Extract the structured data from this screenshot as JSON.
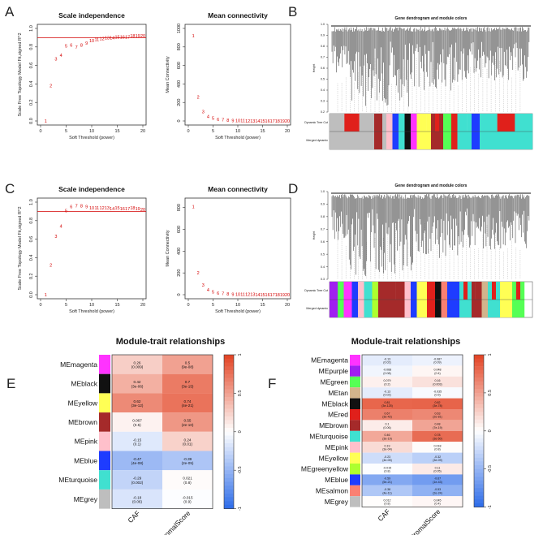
{
  "panel_labels": [
    "A",
    "B",
    "C",
    "D",
    "E",
    "F"
  ],
  "chart_data": [
    {
      "id": "A_scale",
      "type": "scatter",
      "title": "Scale independence",
      "xlabel": "Soft Threshold (power)",
      "ylabel": "Scale Free Topology Model Fit,signed R^2",
      "xlim": [
        0,
        20
      ],
      "ylim": [
        0,
        1.0
      ],
      "xticks": [
        "0",
        "5",
        "10",
        "15",
        "20"
      ],
      "yticks": [
        "0.0",
        "0.2",
        "0.4",
        "0.6",
        "0.8",
        "1.0"
      ],
      "hline": 0.9,
      "x": [
        1,
        2,
        3,
        4,
        5,
        6,
        7,
        8,
        9,
        10,
        11,
        12,
        13,
        14,
        15,
        16,
        17,
        18,
        19,
        20
      ],
      "y": [
        0.0,
        0.38,
        0.67,
        0.71,
        0.81,
        0.82,
        0.8,
        0.82,
        0.84,
        0.87,
        0.88,
        0.89,
        0.9,
        0.9,
        0.91,
        0.91,
        0.91,
        0.92,
        0.92,
        0.92
      ],
      "labels": [
        "1",
        "2",
        "3",
        "4",
        "5",
        "6",
        "7",
        "8",
        "9",
        "10",
        "11",
        "12",
        "13",
        "14",
        "15",
        "16",
        "17",
        "18",
        "19",
        "20"
      ]
    },
    {
      "id": "A_mean",
      "type": "scatter",
      "title": "Mean connectivity",
      "xlabel": "Soft Threshold (power)",
      "ylabel": "Mean Connectivity",
      "xlim": [
        0,
        20
      ],
      "ylim": [
        0,
        1000
      ],
      "xticks": [
        "0",
        "5",
        "10",
        "15",
        "20"
      ],
      "yticks": [
        "0",
        "200",
        "400",
        "600",
        "800",
        "1000"
      ],
      "x": [
        1,
        2,
        3,
        4,
        5,
        6,
        7,
        8,
        9,
        10,
        11,
        12,
        13,
        14,
        15,
        16,
        17,
        18,
        19,
        20
      ],
      "y": [
        920,
        260,
        100,
        50,
        30,
        18,
        12,
        8,
        5,
        4,
        3,
        2,
        2,
        1,
        1,
        1,
        1,
        1,
        1,
        1
      ],
      "labels": [
        "1",
        "2",
        "3",
        "4",
        "5",
        "6",
        "7",
        "8",
        "9",
        "10",
        "11",
        "12",
        "13",
        "14",
        "15",
        "16",
        "17",
        "18",
        "19",
        "20"
      ]
    },
    {
      "id": "C_scale",
      "type": "scatter",
      "title": "Scale independence",
      "xlabel": "Soft Threshold (power)",
      "ylabel": "Scale Free Topology Model Fit,signed R^2",
      "xlim": [
        0,
        20
      ],
      "ylim": [
        0,
        1.0
      ],
      "xticks": [
        "0",
        "5",
        "10",
        "15",
        "20"
      ],
      "yticks": [
        "0.0",
        "0.2",
        "0.4",
        "0.6",
        "0.8",
        "1.0"
      ],
      "hline": 0.9,
      "x": [
        1,
        2,
        3,
        4,
        5,
        6,
        7,
        8,
        9,
        10,
        11,
        12,
        13,
        14,
        15,
        16,
        17,
        18,
        19,
        20
      ],
      "y": [
        0.0,
        0.32,
        0.63,
        0.74,
        0.91,
        0.95,
        0.96,
        0.96,
        0.95,
        0.94,
        0.94,
        0.94,
        0.94,
        0.93,
        0.94,
        0.93,
        0.93,
        0.94,
        0.93,
        0.92
      ],
      "labels": [
        "1",
        "2",
        "3",
        "4",
        "5",
        "6",
        "7",
        "8",
        "9",
        "10",
        "11",
        "12",
        "13",
        "14",
        "15",
        "16",
        "17",
        "18",
        "19",
        "20"
      ]
    },
    {
      "id": "C_mean",
      "type": "scatter",
      "title": "Mean connectivity",
      "xlabel": "Soft Threshold (power)",
      "ylabel": "Mean Connectivity",
      "xlim": [
        0,
        20
      ],
      "ylim": [
        0,
        850
      ],
      "xticks": [
        "0",
        "5",
        "10",
        "15",
        "20"
      ],
      "yticks": [
        "0",
        "200",
        "400",
        "600",
        "800"
      ],
      "x": [
        1,
        2,
        3,
        4,
        5,
        6,
        7,
        8,
        9,
        10,
        11,
        12,
        13,
        14,
        15,
        16,
        17,
        18,
        19,
        20
      ],
      "y": [
        810,
        200,
        90,
        45,
        25,
        15,
        10,
        7,
        5,
        4,
        3,
        2,
        2,
        1,
        1,
        1,
        1,
        1,
        1,
        1
      ],
      "labels": [
        "1",
        "2",
        "3",
        "4",
        "5",
        "6",
        "7",
        "8",
        "9",
        "10",
        "11",
        "12",
        "13",
        "14",
        "15",
        "16",
        "17",
        "18",
        "19",
        "20"
      ]
    },
    {
      "id": "E_heatmap",
      "type": "heatmap",
      "title": "Module-trait relationships",
      "rows": [
        "MEmagenta",
        "MEblack",
        "MEyellow",
        "MEbrown",
        "MEpink",
        "MEblue",
        "MEturquoise",
        "MEgrey"
      ],
      "row_colors": [
        "#ff33ff",
        "#111111",
        "#ffff55",
        "#a52a2a",
        "#ffc0cb",
        "#1e3cff",
        "#40e0d0",
        "#bebebe"
      ],
      "columns": [
        "CAF",
        "StromalScore"
      ],
      "values": [
        [
          0.26,
          0.5
        ],
        [
          0.42,
          0.7
        ],
        [
          0.62,
          0.74
        ],
        [
          0.067,
          0.55
        ],
        [
          -0.15,
          0.24
        ],
        [
          -0.47,
          -0.39
        ],
        [
          -0.29,
          0.021
        ],
        [
          -0.18,
          -0.015
        ]
      ],
      "pvalues": [
        [
          "(0.009)",
          "(9e-08)"
        ],
        [
          "(3e-06)",
          "(3e-15)"
        ],
        [
          "(3e-12)",
          "(4e-21)"
        ],
        [
          "(0.5)",
          "(2e-10)"
        ],
        [
          "(0.1)",
          "(0.01)"
        ],
        [
          "(4e-08)",
          "(2e-05)"
        ],
        [
          "(0.002)",
          "(0.8)"
        ],
        [
          "(0.06)",
          "(0.9)"
        ]
      ],
      "colorbar_ticks": [
        "1",
        "0.5",
        "0",
        "-0.5",
        "-1"
      ]
    },
    {
      "id": "F_heatmap",
      "type": "heatmap",
      "title": "Module-trait relationships",
      "rows": [
        "MEmagenta",
        "MEpurple",
        "MEgreen",
        "MEtan",
        "MEblack",
        "MEred",
        "MEbrown",
        "MEturquoise",
        "MEpink",
        "MEyellow",
        "MEgreenyellow",
        "MEblue",
        "MEsalmon",
        "MEgrey"
      ],
      "row_colors": [
        "#ff33ff",
        "#a020f0",
        "#55ff55",
        "#d2b48c",
        "#111111",
        "#e0201b",
        "#a52a2a",
        "#40e0d0",
        "#ffc0cb",
        "#ffff55",
        "#adff2f",
        "#1e3cff",
        "#fa8072",
        "#bebebe"
      ],
      "columns": [
        "CAF",
        "StromalScore"
      ],
      "values": [
        [
          -0.13,
          -0.087
        ],
        [
          -0.068,
          0.048
        ],
        [
          0.079,
          0.16
        ],
        [
          -0.13,
          -0.035
        ],
        [
          0.81,
          0.82
        ],
        [
          0.67,
          0.63
        ],
        [
          0.1,
          0.48
        ],
        [
          0.46,
          0.78
        ],
        [
          0.19,
          0.018
        ],
        [
          -0.23,
          -0.32
        ],
        [
          -0.015,
          0.11
        ],
        [
          -0.59,
          -0.67
        ],
        [
          -0.38,
          -0.53
        ],
        [
          0.012,
          0.045
        ]
      ],
      "pvalues": [
        [
          "(0.02)",
          "(0.09)"
        ],
        [
          "(0.08)",
          "(0.4)"
        ],
        [
          "(0.2)",
          "(0.003)"
        ],
        [
          "(0.02)",
          "(0.5)"
        ],
        [
          "(3e-125)",
          "(3e-78)"
        ],
        [
          "(3e-42)",
          "(2e-81)"
        ],
        [
          "(0.06)",
          "(7e-19)"
        ],
        [
          "(3e-19)",
          "(3e-50)"
        ],
        [
          "(3e-04)",
          "(0.8)"
        ],
        [
          "(4e-05)",
          "(3e-09)"
        ],
        [
          "(0.8)",
          "(0.05)"
        ],
        [
          "(5e-21)",
          "(1e-43)"
        ],
        [
          "(4e-11)",
          "(2e-24)"
        ],
        [
          "(0.8)",
          "(0.4)"
        ]
      ],
      "colorbar_ticks": [
        "1",
        "0.5",
        "0",
        "-0.5",
        "-1"
      ]
    }
  ],
  "dendrograms": [
    {
      "id": "B",
      "title": "Gene dendrogram and module colors",
      "ylabel": "Height",
      "yticks": [
        "1.0",
        "0.9",
        "0.8",
        "0.7",
        "0.6",
        "0.5",
        "0.4",
        "0.3",
        "0.2"
      ],
      "band_labels": [
        "Dynamic Tree Cut",
        "Merged dynamic"
      ],
      "seed": 7,
      "merged_segments": [
        {
          "c": "#bebebe",
          "w": 0.22
        },
        {
          "c": "#a52a2a",
          "w": 0.04
        },
        {
          "c": "#bebebe",
          "w": 0.02
        },
        {
          "c": "#ffc0cb",
          "w": 0.03
        },
        {
          "c": "#1e3cff",
          "w": 0.03
        },
        {
          "c": "#40e0d0",
          "w": 0.03
        },
        {
          "c": "#111111",
          "w": 0.03
        },
        {
          "c": "#ff33ff",
          "w": 0.03
        },
        {
          "c": "#ffff55",
          "w": 0.07
        },
        {
          "c": "#a52a2a",
          "w": 0.06
        },
        {
          "c": "#55ff55",
          "w": 0.04
        },
        {
          "c": "#e0201b",
          "w": 0.03
        },
        {
          "c": "#40e0d0",
          "w": 0.07
        },
        {
          "c": "#1e3cff",
          "w": 0.04
        },
        {
          "c": "#40e0d0",
          "w": 0.26
        }
      ]
    },
    {
      "id": "D",
      "title": "Gene dendrogram and module colors",
      "ylabel": "Height",
      "yticks": [
        "1.0",
        "0.9",
        "0.8",
        "0.7",
        "0.6",
        "0.5",
        "0.4",
        "0.3"
      ],
      "band_labels": [
        "Dynamic Tree Cut",
        "Merged dynamic"
      ],
      "seed": 13,
      "merged_segments": [
        {
          "c": "#a020f0",
          "w": 0.04
        },
        {
          "c": "#55ff55",
          "w": 0.03
        },
        {
          "c": "#ff33ff",
          "w": 0.04
        },
        {
          "c": "#1e3cff",
          "w": 0.03
        },
        {
          "c": "#ffc0cb",
          "w": 0.03
        },
        {
          "c": "#40e0d0",
          "w": 0.04
        },
        {
          "c": "#adff2f",
          "w": 0.03
        },
        {
          "c": "#a52a2a",
          "w": 0.13
        },
        {
          "c": "#ffc0cb",
          "w": 0.03
        },
        {
          "c": "#1e3cff",
          "w": 0.03
        },
        {
          "c": "#ffff55",
          "w": 0.05
        },
        {
          "c": "#e0201b",
          "w": 0.04
        },
        {
          "c": "#111111",
          "w": 0.03
        },
        {
          "c": "#fa8072",
          "w": 0.03
        },
        {
          "c": "#1e3cff",
          "w": 0.06
        },
        {
          "c": "#40e0d0",
          "w": 0.06
        },
        {
          "c": "#a52a2a",
          "w": 0.05
        },
        {
          "c": "#d2b48c",
          "w": 0.03
        },
        {
          "c": "#40e0d0",
          "w": 0.06
        },
        {
          "c": "#ffff55",
          "w": 0.06
        },
        {
          "c": "#55ff55",
          "w": 0.06
        }
      ]
    }
  ]
}
